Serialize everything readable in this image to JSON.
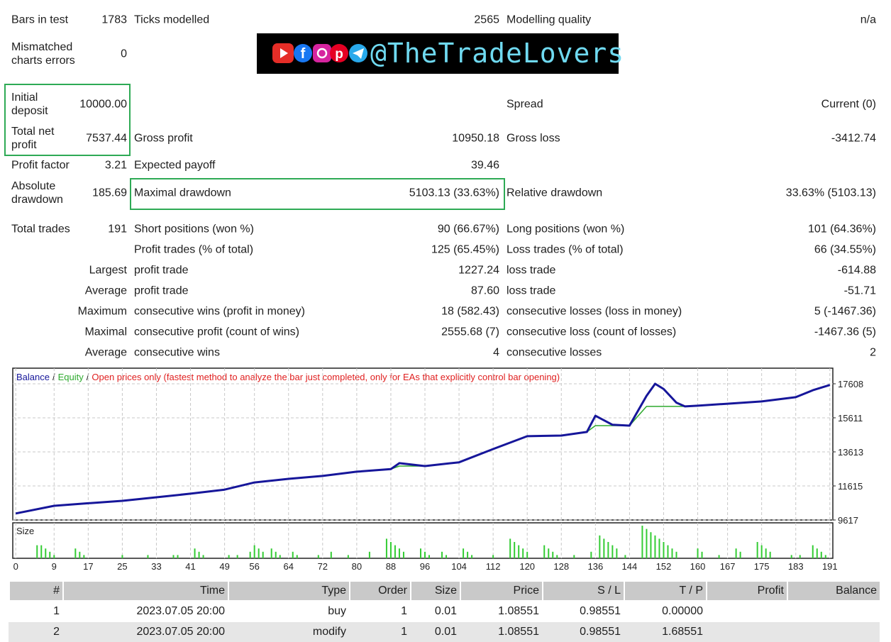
{
  "stats": [
    {
      "l1": "Bars in test",
      "v1": "1783",
      "l2": "Ticks modelled",
      "v2": "2565",
      "l3": "Modelling quality",
      "v3": "n/a"
    },
    {
      "l1": "Mismatched charts errors",
      "v1": "0"
    },
    {
      "l1": "Initial deposit",
      "v1": "10000.00",
      "l3": "Spread",
      "v3": "Current (0)"
    },
    {
      "l1": "Total net profit",
      "v1": "7537.44",
      "l2": "Gross profit",
      "v2": "10950.18",
      "l3": "Gross loss",
      "v3": "-3412.74"
    },
    {
      "l1": "Profit factor",
      "v1": "3.21",
      "l2": "Expected payoff",
      "v2": "39.46"
    },
    {
      "l1": "Absolute drawdown",
      "v1": "185.69",
      "l2": "Maximal drawdown",
      "v2": "5103.13 (33.63%)",
      "l3": "Relative drawdown",
      "v3": "33.63% (5103.13)"
    },
    {
      "l1": "Total trades",
      "v1": "191",
      "l2": "Short positions (won %)",
      "v2": "90 (66.67%)",
      "l3": "Long positions (won %)",
      "v3": "101 (64.36%)"
    },
    {
      "l2": "Profit trades (% of total)",
      "v2": "125 (65.45%)",
      "l3": "Loss trades (% of total)",
      "v3": "66 (34.55%)"
    },
    {
      "l1": "Largest",
      "l2": "profit trade",
      "v2": "1227.24",
      "l3": "loss trade",
      "v3": "-614.88"
    },
    {
      "l1": "Average",
      "l2": "profit trade",
      "v2": "87.60",
      "l3": "loss trade",
      "v3": "-51.71"
    },
    {
      "l1": "Maximum",
      "l2": "consecutive wins (profit in money)",
      "v2": "18 (582.43)",
      "l3": "consecutive losses (loss in money)",
      "v3": "5 (-1467.36)"
    },
    {
      "l1": "Maximal",
      "l2": "consecutive profit (count of wins)",
      "v2": "2555.68 (7)",
      "l3": "consecutive loss (count of losses)",
      "v3": "-1467.36 (5)"
    },
    {
      "l1": "Average",
      "l2": "consecutive wins",
      "v2": "4",
      "l3": "consecutive losses",
      "v3": "2"
    }
  ],
  "watermark": "@TheTradeLovers",
  "chart_data": [
    {
      "type": "line",
      "legend_separator": "/",
      "note": "Open prices only (fastest method to analyze the bar just completed, only for EAs that explicitly control bar opening)",
      "x": [
        0,
        9,
        17,
        25,
        33,
        41,
        49,
        56,
        64,
        72,
        80,
        88,
        90,
        96,
        104,
        112,
        120,
        128,
        134,
        136,
        140,
        144,
        148,
        150,
        152,
        155,
        157,
        160,
        167,
        175,
        183,
        187,
        191
      ],
      "series": [
        {
          "name": "Balance",
          "color": "#16169a",
          "values": [
            10000,
            10450,
            10600,
            10740,
            10950,
            11160,
            11400,
            11820,
            12030,
            12200,
            12450,
            12600,
            12950,
            12780,
            13000,
            13780,
            14530,
            14570,
            14780,
            15730,
            15200,
            15150,
            16900,
            17608,
            17300,
            16500,
            16280,
            16320,
            16440,
            16570,
            16820,
            17230,
            17537
          ]
        },
        {
          "name": "Equity",
          "color": "#2eaa2e",
          "values": [
            10000,
            10450,
            10600,
            10740,
            10950,
            11160,
            11400,
            11820,
            12030,
            12200,
            12450,
            12600,
            12780,
            12780,
            13000,
            13780,
            14530,
            14570,
            14780,
            15150,
            15150,
            15150,
            16280,
            16280,
            16280,
            16280,
            16280,
            16320,
            16440,
            16570,
            16820,
            17230,
            17537
          ]
        }
      ],
      "xlim": [
        -0.7,
        191.7
      ],
      "xticks": [
        0,
        9,
        17,
        25,
        33,
        41,
        49,
        56,
        64,
        72,
        80,
        88,
        96,
        104,
        112,
        120,
        128,
        136,
        144,
        152,
        160,
        167,
        175,
        183,
        191
      ],
      "ylim": [
        9617,
        18523
      ],
      "yticks": [
        9617,
        11615,
        13613,
        15611,
        17608
      ],
      "grid": true
    },
    {
      "type": "bar",
      "title": "Size",
      "color": "#33cc33",
      "xlim": [
        -0.7,
        191.7
      ],
      "ylim": [
        0,
        0.1
      ],
      "x": [
        5,
        6,
        7,
        8,
        9,
        14,
        15,
        16,
        25,
        31,
        37,
        38,
        42,
        43,
        44,
        50,
        52,
        55,
        56,
        57,
        58,
        60,
        61,
        62,
        65,
        66,
        71,
        74,
        78,
        83,
        87,
        88,
        89,
        90,
        91,
        95,
        96,
        97,
        100,
        101,
        105,
        106,
        107,
        112,
        116,
        117,
        118,
        119,
        120,
        124,
        125,
        126,
        127,
        131,
        135,
        137,
        138,
        139,
        140,
        141,
        143,
        147,
        148,
        149,
        150,
        151,
        152,
        153,
        154,
        155,
        160,
        161,
        165,
        169,
        170,
        174,
        175,
        176,
        177,
        182,
        184,
        187,
        188,
        189,
        190
      ],
      "values": [
        0.04,
        0.04,
        0.03,
        0.02,
        0.01,
        0.03,
        0.02,
        0.01,
        0.01,
        0.01,
        0.01,
        0.01,
        0.03,
        0.02,
        0.01,
        0.01,
        0.01,
        0.02,
        0.04,
        0.03,
        0.02,
        0.03,
        0.02,
        0.01,
        0.02,
        0.01,
        0.01,
        0.02,
        0.01,
        0.02,
        0.06,
        0.05,
        0.04,
        0.03,
        0.02,
        0.03,
        0.02,
        0.01,
        0.02,
        0.01,
        0.03,
        0.02,
        0.01,
        0.01,
        0.06,
        0.05,
        0.04,
        0.03,
        0.02,
        0.04,
        0.03,
        0.02,
        0.01,
        0.01,
        0.02,
        0.07,
        0.06,
        0.05,
        0.04,
        0.03,
        0.01,
        0.1,
        0.09,
        0.08,
        0.07,
        0.06,
        0.05,
        0.04,
        0.03,
        0.02,
        0.03,
        0.02,
        0.01,
        0.03,
        0.02,
        0.05,
        0.04,
        0.03,
        0.02,
        0.01,
        0.01,
        0.04,
        0.03,
        0.02,
        0.01
      ]
    }
  ],
  "table": {
    "columns": [
      "#",
      "Time",
      "Type",
      "Order",
      "Size",
      "Price",
      "S / L",
      "T / P",
      "Profit",
      "Balance"
    ],
    "rows": [
      [
        "1",
        "2023.07.05 20:00",
        "buy",
        "1",
        "0.01",
        "1.08551",
        "0.98551",
        "0.00000"
      ],
      [
        "2",
        "2023.07.05 20:00",
        "modify",
        "1",
        "0.01",
        "1.08551",
        "0.98551",
        "1.68551"
      ]
    ]
  }
}
